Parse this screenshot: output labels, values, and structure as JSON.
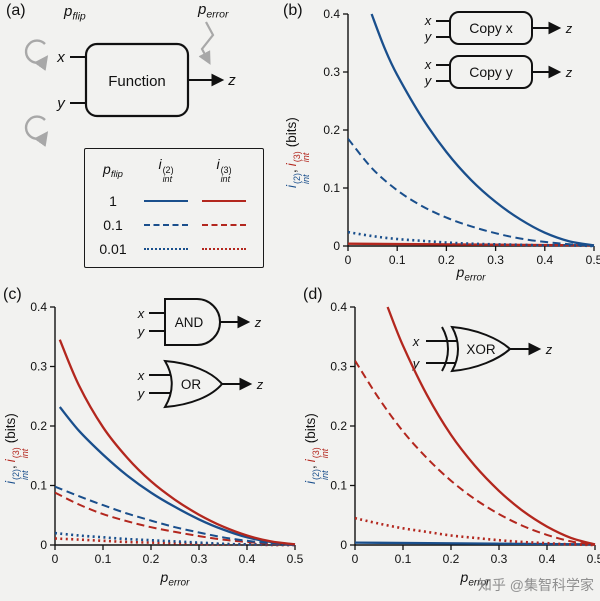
{
  "colors": {
    "blue": "#1a4f8c",
    "red": "#b3271e",
    "axis": "#111111",
    "arrow_gray": "#a8a8a8",
    "watermark_gray": "#8f8f8f",
    "background": "#f2f2f0"
  },
  "panel_labels": {
    "a": "(a)",
    "b": "(b)",
    "c": "(c)",
    "d": "(d)"
  },
  "io": {
    "x": "x",
    "y": "y",
    "z": "z"
  },
  "panel_a": {
    "pflip": {
      "base": "p",
      "sub": "flip"
    },
    "perror": {
      "base": "p",
      "sub": "error"
    },
    "function_label": "Function",
    "legend": {
      "header": {
        "pflip_base": "p",
        "pflip_sub": "flip",
        "i_base": "i",
        "i_sub": "int",
        "i2_sup": "(2)",
        "i3_sup": "(3)"
      },
      "rows": [
        {
          "pflip": "1",
          "line_style": "solid"
        },
        {
          "pflip": "0.1",
          "line_style": "dashed"
        },
        {
          "pflip": "0.01",
          "line_style": "dotted"
        }
      ]
    }
  },
  "axis": {
    "xlabel": {
      "base": "p",
      "sub": "error"
    },
    "ylabel": {
      "i_base": "i",
      "i_sub": "int",
      "i2_sup": "(2)",
      "i3_sup": "(3)",
      "comma": ",",
      "units": "(bits)"
    }
  },
  "insets": {
    "copy_x": {
      "label": "Copy x"
    },
    "copy_y": {
      "label": "Copy y"
    },
    "and": {
      "label": "AND"
    },
    "or": {
      "label": "OR"
    },
    "xor": {
      "label": "XOR"
    }
  },
  "watermark": "知乎 @集智科学家",
  "chart_data": [
    {
      "type": "line",
      "panel": "b",
      "title": "",
      "xlabel": "p_error",
      "ylabel": "i_int^(2), i_int^(3) (bits)",
      "xlim": [
        0,
        0.5
      ],
      "ylim": [
        0,
        0.4
      ],
      "xticks": [
        "0",
        "0.1",
        "0.2",
        "0.3",
        "0.4",
        "0.5"
      ],
      "yticks": [
        "0",
        "0.1",
        "0.2",
        "0.3",
        "0.4"
      ],
      "grid": false,
      "legend_position": "none",
      "series": [
        {
          "name": "i3 all pflip",
          "color": "red",
          "style": "solid",
          "x": [
            0,
            0.5
          ],
          "y": [
            0.004,
            0.001
          ]
        },
        {
          "name": "i2 pflip 0.01",
          "color": "blue",
          "style": "dotted",
          "x": [
            0,
            0.05,
            0.1,
            0.15,
            0.2,
            0.25,
            0.3,
            0.35,
            0.4,
            0.45,
            0.5
          ],
          "y": [
            0.024,
            0.017,
            0.012,
            0.009,
            0.006,
            0.004,
            0.003,
            0.002,
            0.001,
            0.001,
            0
          ]
        },
        {
          "name": "i2 pflip 0.1",
          "color": "blue",
          "style": "dashed",
          "x": [
            0,
            0.05,
            0.1,
            0.15,
            0.2,
            0.25,
            0.3,
            0.35,
            0.4,
            0.45,
            0.5
          ],
          "y": [
            0.185,
            0.133,
            0.096,
            0.069,
            0.049,
            0.034,
            0.022,
            0.013,
            0.007,
            0.003,
            0
          ]
        },
        {
          "name": "i2 pflip 1",
          "color": "blue",
          "style": "solid",
          "x": [
            0.048,
            0.075,
            0.1,
            0.15,
            0.2,
            0.25,
            0.3,
            0.35,
            0.4,
            0.45,
            0.5
          ],
          "y": [
            0.4,
            0.34,
            0.295,
            0.222,
            0.162,
            0.114,
            0.076,
            0.046,
            0.023,
            0.008,
            0.001
          ]
        }
      ]
    },
    {
      "type": "line",
      "panel": "c",
      "title": "",
      "xlabel": "p_error",
      "ylabel": "i_int^(2), i_int^(3) (bits)",
      "xlim": [
        0,
        0.5
      ],
      "ylim": [
        0,
        0.4
      ],
      "xticks": [
        "0",
        "0.1",
        "0.2",
        "0.3",
        "0.4",
        "0.5"
      ],
      "yticks": [
        "0",
        "0.1",
        "0.2",
        "0.3",
        "0.4"
      ],
      "grid": false,
      "legend_position": "none",
      "series": [
        {
          "name": "i3 pflip 0.01",
          "color": "red",
          "style": "dotted",
          "x": [
            0,
            0.05,
            0.1,
            0.15,
            0.2,
            0.25,
            0.3,
            0.35,
            0.4,
            0.45,
            0.5
          ],
          "y": [
            0.011,
            0.009,
            0.007,
            0.005,
            0.004,
            0.003,
            0.002,
            0.001,
            0.001,
            0,
            0
          ]
        },
        {
          "name": "i2 pflip 0.01",
          "color": "blue",
          "style": "dotted",
          "x": [
            0,
            0.05,
            0.1,
            0.15,
            0.2,
            0.25,
            0.3,
            0.35,
            0.4,
            0.45,
            0.5
          ],
          "y": [
            0.02,
            0.016,
            0.013,
            0.01,
            0.008,
            0.006,
            0.004,
            0.002,
            0.001,
            0.001,
            0
          ]
        },
        {
          "name": "i3 pflip 0.1",
          "color": "red",
          "style": "dashed",
          "x": [
            0,
            0.05,
            0.1,
            0.15,
            0.2,
            0.25,
            0.3,
            0.35,
            0.4,
            0.45,
            0.5
          ],
          "y": [
            0.088,
            0.068,
            0.052,
            0.04,
            0.03,
            0.022,
            0.015,
            0.009,
            0.005,
            0.002,
            0
          ]
        },
        {
          "name": "i2 pflip 0.1",
          "color": "blue",
          "style": "dashed",
          "x": [
            0,
            0.05,
            0.1,
            0.15,
            0.2,
            0.25,
            0.3,
            0.35,
            0.4,
            0.45,
            0.5
          ],
          "y": [
            0.098,
            0.082,
            0.067,
            0.053,
            0.041,
            0.03,
            0.021,
            0.013,
            0.007,
            0.003,
            0
          ]
        },
        {
          "name": "i2 pflip 1",
          "color": "blue",
          "style": "solid",
          "x": [
            0.01,
            0.05,
            0.1,
            0.15,
            0.2,
            0.25,
            0.3,
            0.35,
            0.4,
            0.45,
            0.5
          ],
          "y": [
            0.232,
            0.192,
            0.152,
            0.117,
            0.088,
            0.064,
            0.043,
            0.026,
            0.013,
            0.005,
            0.001
          ]
        },
        {
          "name": "i3 pflip 1",
          "color": "red",
          "style": "solid",
          "x": [
            0.01,
            0.05,
            0.1,
            0.15,
            0.2,
            0.25,
            0.3,
            0.35,
            0.4,
            0.45,
            0.5
          ],
          "y": [
            0.345,
            0.268,
            0.198,
            0.147,
            0.107,
            0.076,
            0.051,
            0.031,
            0.016,
            0.006,
            0.001
          ]
        }
      ]
    },
    {
      "type": "line",
      "panel": "d",
      "title": "",
      "xlabel": "p_error",
      "ylabel": "i_int^(2), i_int^(3) (bits)",
      "xlim": [
        0,
        0.5
      ],
      "ylim": [
        0,
        0.4
      ],
      "xticks": [
        "0",
        "0.1",
        "0.2",
        "0.3",
        "0.4",
        "0.5"
      ],
      "yticks": [
        "0",
        "0.1",
        "0.2",
        "0.3",
        "0.4"
      ],
      "grid": false,
      "legend_position": "none",
      "series": [
        {
          "name": "i2 all pflip",
          "color": "blue",
          "style": "solid",
          "x": [
            0,
            0.5
          ],
          "y": [
            0.004,
            0.001
          ]
        },
        {
          "name": "i3 pflip 0.01",
          "color": "red",
          "style": "dotted",
          "x": [
            0,
            0.05,
            0.1,
            0.15,
            0.2,
            0.25,
            0.3,
            0.35,
            0.4,
            0.45,
            0.5
          ],
          "y": [
            0.045,
            0.036,
            0.028,
            0.022,
            0.016,
            0.012,
            0.008,
            0.005,
            0.003,
            0.001,
            0
          ]
        },
        {
          "name": "i3 pflip 0.1",
          "color": "red",
          "style": "dashed",
          "x": [
            0,
            0.05,
            0.1,
            0.15,
            0.2,
            0.25,
            0.3,
            0.35,
            0.4,
            0.45,
            0.5
          ],
          "y": [
            0.31,
            0.246,
            0.191,
            0.146,
            0.108,
            0.077,
            0.052,
            0.032,
            0.017,
            0.006,
            0
          ]
        },
        {
          "name": "i3 pflip 1",
          "color": "red",
          "style": "solid",
          "x": [
            0.068,
            0.1,
            0.15,
            0.2,
            0.25,
            0.3,
            0.35,
            0.4,
            0.45,
            0.5
          ],
          "y": [
            0.4,
            0.335,
            0.252,
            0.185,
            0.133,
            0.091,
            0.057,
            0.031,
            0.012,
            0.001
          ]
        }
      ]
    }
  ]
}
